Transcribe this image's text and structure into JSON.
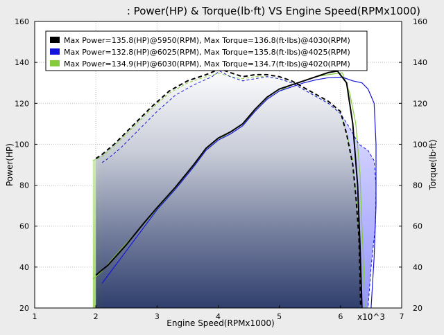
{
  "chart_data": {
    "type": "line",
    "title": ": Power(HP) & Torque(lb·ft) VS Engine Speed(RPMx1000)",
    "xlabel": "Engine Speed(RPMx1000)",
    "x_multiplier_label": "x10^3",
    "ylabel_left": "Power(HP)",
    "ylabel_right": "Torque(lb·ft)",
    "xlim": [
      1,
      7
    ],
    "ylim": [
      20,
      160
    ],
    "xticks": [
      "1",
      "2",
      "3",
      "4",
      "5",
      "6",
      "7"
    ],
    "yticks": [
      "20",
      "40",
      "60",
      "80",
      "100",
      "120",
      "140",
      "160"
    ],
    "grid": true,
    "legend_position": "top-left",
    "series": [
      {
        "name": "Max Power=135.8(HP)@5950(RPM), Max Torque=136.8(ft·lbs)@4030(RPM)",
        "color": "#000000",
        "power": [
          [
            2.0,
            36
          ],
          [
            2.2,
            41
          ],
          [
            2.5,
            51
          ],
          [
            2.8,
            62
          ],
          [
            3.0,
            69
          ],
          [
            3.3,
            79
          ],
          [
            3.6,
            90
          ],
          [
            3.8,
            98
          ],
          [
            4.0,
            103
          ],
          [
            4.2,
            106
          ],
          [
            4.4,
            110
          ],
          [
            4.6,
            117
          ],
          [
            4.8,
            123
          ],
          [
            5.0,
            127
          ],
          [
            5.2,
            129
          ],
          [
            5.4,
            131
          ],
          [
            5.6,
            133
          ],
          [
            5.8,
            135
          ],
          [
            5.95,
            135.8
          ],
          [
            6.1,
            130
          ],
          [
            6.2,
            110
          ],
          [
            6.28,
            80
          ],
          [
            6.32,
            50
          ],
          [
            6.35,
            20
          ]
        ],
        "torque": [
          [
            2.0,
            93
          ],
          [
            2.1,
            95
          ],
          [
            2.3,
            100
          ],
          [
            2.6,
            109
          ],
          [
            2.9,
            118
          ],
          [
            3.2,
            126
          ],
          [
            3.5,
            131
          ],
          [
            3.8,
            134
          ],
          [
            4.03,
            136.8
          ],
          [
            4.2,
            135
          ],
          [
            4.4,
            133
          ],
          [
            4.6,
            134
          ],
          [
            4.8,
            134
          ],
          [
            5.0,
            133
          ],
          [
            5.2,
            131
          ],
          [
            5.5,
            126
          ],
          [
            5.8,
            121
          ],
          [
            6.0,
            116
          ],
          [
            6.1,
            105
          ],
          [
            6.2,
            90
          ],
          [
            6.25,
            75
          ],
          [
            6.3,
            55
          ],
          [
            6.32,
            35
          ],
          [
            6.33,
            20
          ]
        ]
      },
      {
        "name": "Max Power=132.8(HP)@6025(RPM), Max Torque=135.8(ft·lbs)@4025(RPM)",
        "color": "#1414dc",
        "power": [
          [
            2.1,
            32
          ],
          [
            2.3,
            40
          ],
          [
            2.5,
            48
          ],
          [
            2.8,
            60
          ],
          [
            3.0,
            68
          ],
          [
            3.3,
            78
          ],
          [
            3.6,
            89
          ],
          [
            3.8,
            97
          ],
          [
            4.0,
            102
          ],
          [
            4.2,
            105
          ],
          [
            4.4,
            109
          ],
          [
            4.6,
            116
          ],
          [
            4.8,
            122
          ],
          [
            5.0,
            126
          ],
          [
            5.2,
            128
          ],
          [
            5.4,
            130
          ],
          [
            5.6,
            131.5
          ],
          [
            5.8,
            132.5
          ],
          [
            6.025,
            132.8
          ],
          [
            6.2,
            131
          ],
          [
            6.35,
            130
          ],
          [
            6.45,
            127
          ],
          [
            6.55,
            120
          ],
          [
            6.58,
            100
          ],
          [
            6.58,
            70
          ],
          [
            6.55,
            45
          ],
          [
            6.5,
            20
          ]
        ],
        "torque": [
          [
            2.1,
            91
          ],
          [
            2.2,
            93
          ],
          [
            2.4,
            98
          ],
          [
            2.7,
            107
          ],
          [
            3.0,
            116
          ],
          [
            3.3,
            124
          ],
          [
            3.6,
            129
          ],
          [
            3.9,
            133
          ],
          [
            4.025,
            135.8
          ],
          [
            4.2,
            133
          ],
          [
            4.4,
            131
          ],
          [
            4.6,
            132
          ],
          [
            4.8,
            133
          ],
          [
            5.0,
            132
          ],
          [
            5.2,
            130
          ],
          [
            5.5,
            125
          ],
          [
            5.8,
            120
          ],
          [
            6.0,
            115
          ],
          [
            6.15,
            108
          ],
          [
            6.3,
            100
          ],
          [
            6.45,
            97
          ],
          [
            6.55,
            92
          ],
          [
            6.58,
            80
          ],
          [
            6.57,
            60
          ],
          [
            6.5,
            40
          ],
          [
            6.45,
            20
          ]
        ]
      },
      {
        "name": "Max Power=134.9(HP)@6030(RPM), Max Torque=134.7(ft·lbs)@4020(RPM)",
        "color": "#84cc3c",
        "power": [
          [
            1.95,
            34
          ],
          [
            2.1,
            38
          ],
          [
            2.3,
            45
          ],
          [
            2.6,
            55
          ],
          [
            2.9,
            65
          ],
          [
            3.2,
            75
          ],
          [
            3.5,
            86
          ],
          [
            3.8,
            97
          ],
          [
            4.0,
            102
          ],
          [
            4.2,
            106
          ],
          [
            4.4,
            110
          ],
          [
            4.6,
            116
          ],
          [
            4.8,
            122
          ],
          [
            5.0,
            126
          ],
          [
            5.2,
            129
          ],
          [
            5.4,
            131
          ],
          [
            5.6,
            133
          ],
          [
            5.8,
            134
          ],
          [
            6.03,
            134.9
          ],
          [
            6.15,
            125
          ],
          [
            6.25,
            110
          ],
          [
            6.32,
            85
          ],
          [
            6.35,
            60
          ],
          [
            6.38,
            40
          ],
          [
            6.4,
            20
          ]
        ],
        "torque": [
          [
            1.95,
            92
          ],
          [
            2.1,
            94
          ],
          [
            2.3,
            99
          ],
          [
            2.6,
            108
          ],
          [
            2.9,
            117
          ],
          [
            3.2,
            125
          ],
          [
            3.5,
            130
          ],
          [
            3.8,
            133
          ],
          [
            4.02,
            134.7
          ],
          [
            4.2,
            133
          ],
          [
            4.4,
            132
          ],
          [
            4.6,
            133
          ],
          [
            4.8,
            133
          ],
          [
            5.0,
            132
          ],
          [
            5.2,
            130
          ],
          [
            5.5,
            125
          ],
          [
            5.8,
            120
          ],
          [
            6.0,
            115
          ],
          [
            6.1,
            106
          ],
          [
            6.2,
            93
          ],
          [
            6.25,
            78
          ],
          [
            6.3,
            58
          ],
          [
            6.33,
            38
          ],
          [
            6.35,
            20
          ]
        ]
      }
    ]
  }
}
